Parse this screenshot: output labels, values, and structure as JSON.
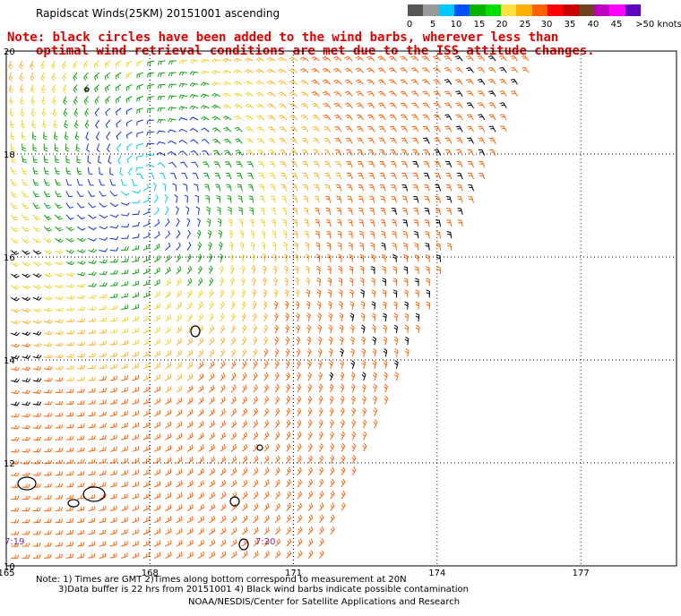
{
  "title": "Rapidscat Winds(25KM) 20151001 ascending",
  "note_line1": "Note: black circles have been added to the wind barbs, wherever less than",
  "note_line2": "optimal wind retrieval conditions are met due to the ISS attitude changes.",
  "legend": {
    "labels": [
      "0",
      "5",
      "10",
      "15",
      "20",
      "25",
      "30",
      "35",
      "40",
      "45",
      ">50 knots"
    ],
    "colors": [
      "#555555",
      "#999999",
      "#00c8ff",
      "#0050ff",
      "#00b400",
      "#00e000",
      "#ffe040",
      "#ffb000",
      "#ff6000",
      "#ff0000",
      "#c80000",
      "#704020",
      "#c000c0",
      "#ff00ff",
      "#6000c0"
    ]
  },
  "axes": {
    "lat_ticks": [
      "20",
      "18",
      "16",
      "14",
      "12",
      "10"
    ],
    "lon_ticks": [
      "165",
      "168",
      "171",
      "174",
      "177"
    ]
  },
  "time_labels": [
    "7:19",
    "7:20"
  ],
  "footer": {
    "line1": "Note: 1) Times are GMT 2)Times along bottom correspond to measurement at 20N",
    "line2": "3)Data buffer is 22 hrs from 20151001 4) Black wind barbs indicate possible contamination",
    "line3": "NOAA/NESDIS/Center for Satellite Applications and Research"
  },
  "map_data": {
    "lon_range": [
      165,
      179
    ],
    "lat_range": [
      10,
      20
    ],
    "wind_center": {
      "lon": 167.8,
      "lat": 17.5
    },
    "swath_edge": "northwest of diagonal line from lon 171.5 lat 10 to lon 176.2 lat 20"
  }
}
